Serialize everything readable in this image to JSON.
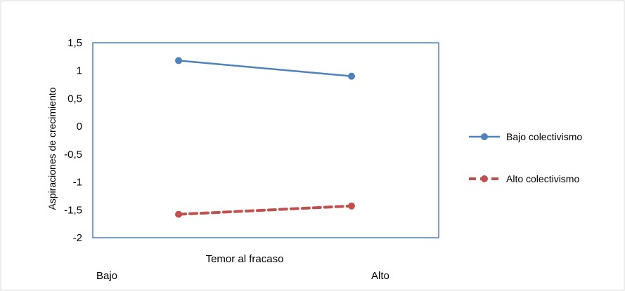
{
  "chart_data": {
    "type": "line",
    "title": "",
    "xlabel": "Temor al fracaso",
    "ylabel": "Aspiraciones de crecimiento",
    "categories": [
      "Bajo",
      "Alto"
    ],
    "yticks": [
      "1,5",
      "1",
      "0,5",
      "0",
      "-0,5",
      "-1",
      "-1,5",
      "-2"
    ],
    "ylim": [
      -2,
      1.5
    ],
    "grid": false,
    "legend_position": "right",
    "series": [
      {
        "name": "Bajo colectivismo",
        "values": [
          1.18,
          0.9
        ],
        "color": "#4F81BD",
        "dash": "solid"
      },
      {
        "name": "Alto colectivismo",
        "values": [
          -1.58,
          -1.43
        ],
        "color": "#C0504D",
        "dash": "dashed"
      }
    ]
  }
}
